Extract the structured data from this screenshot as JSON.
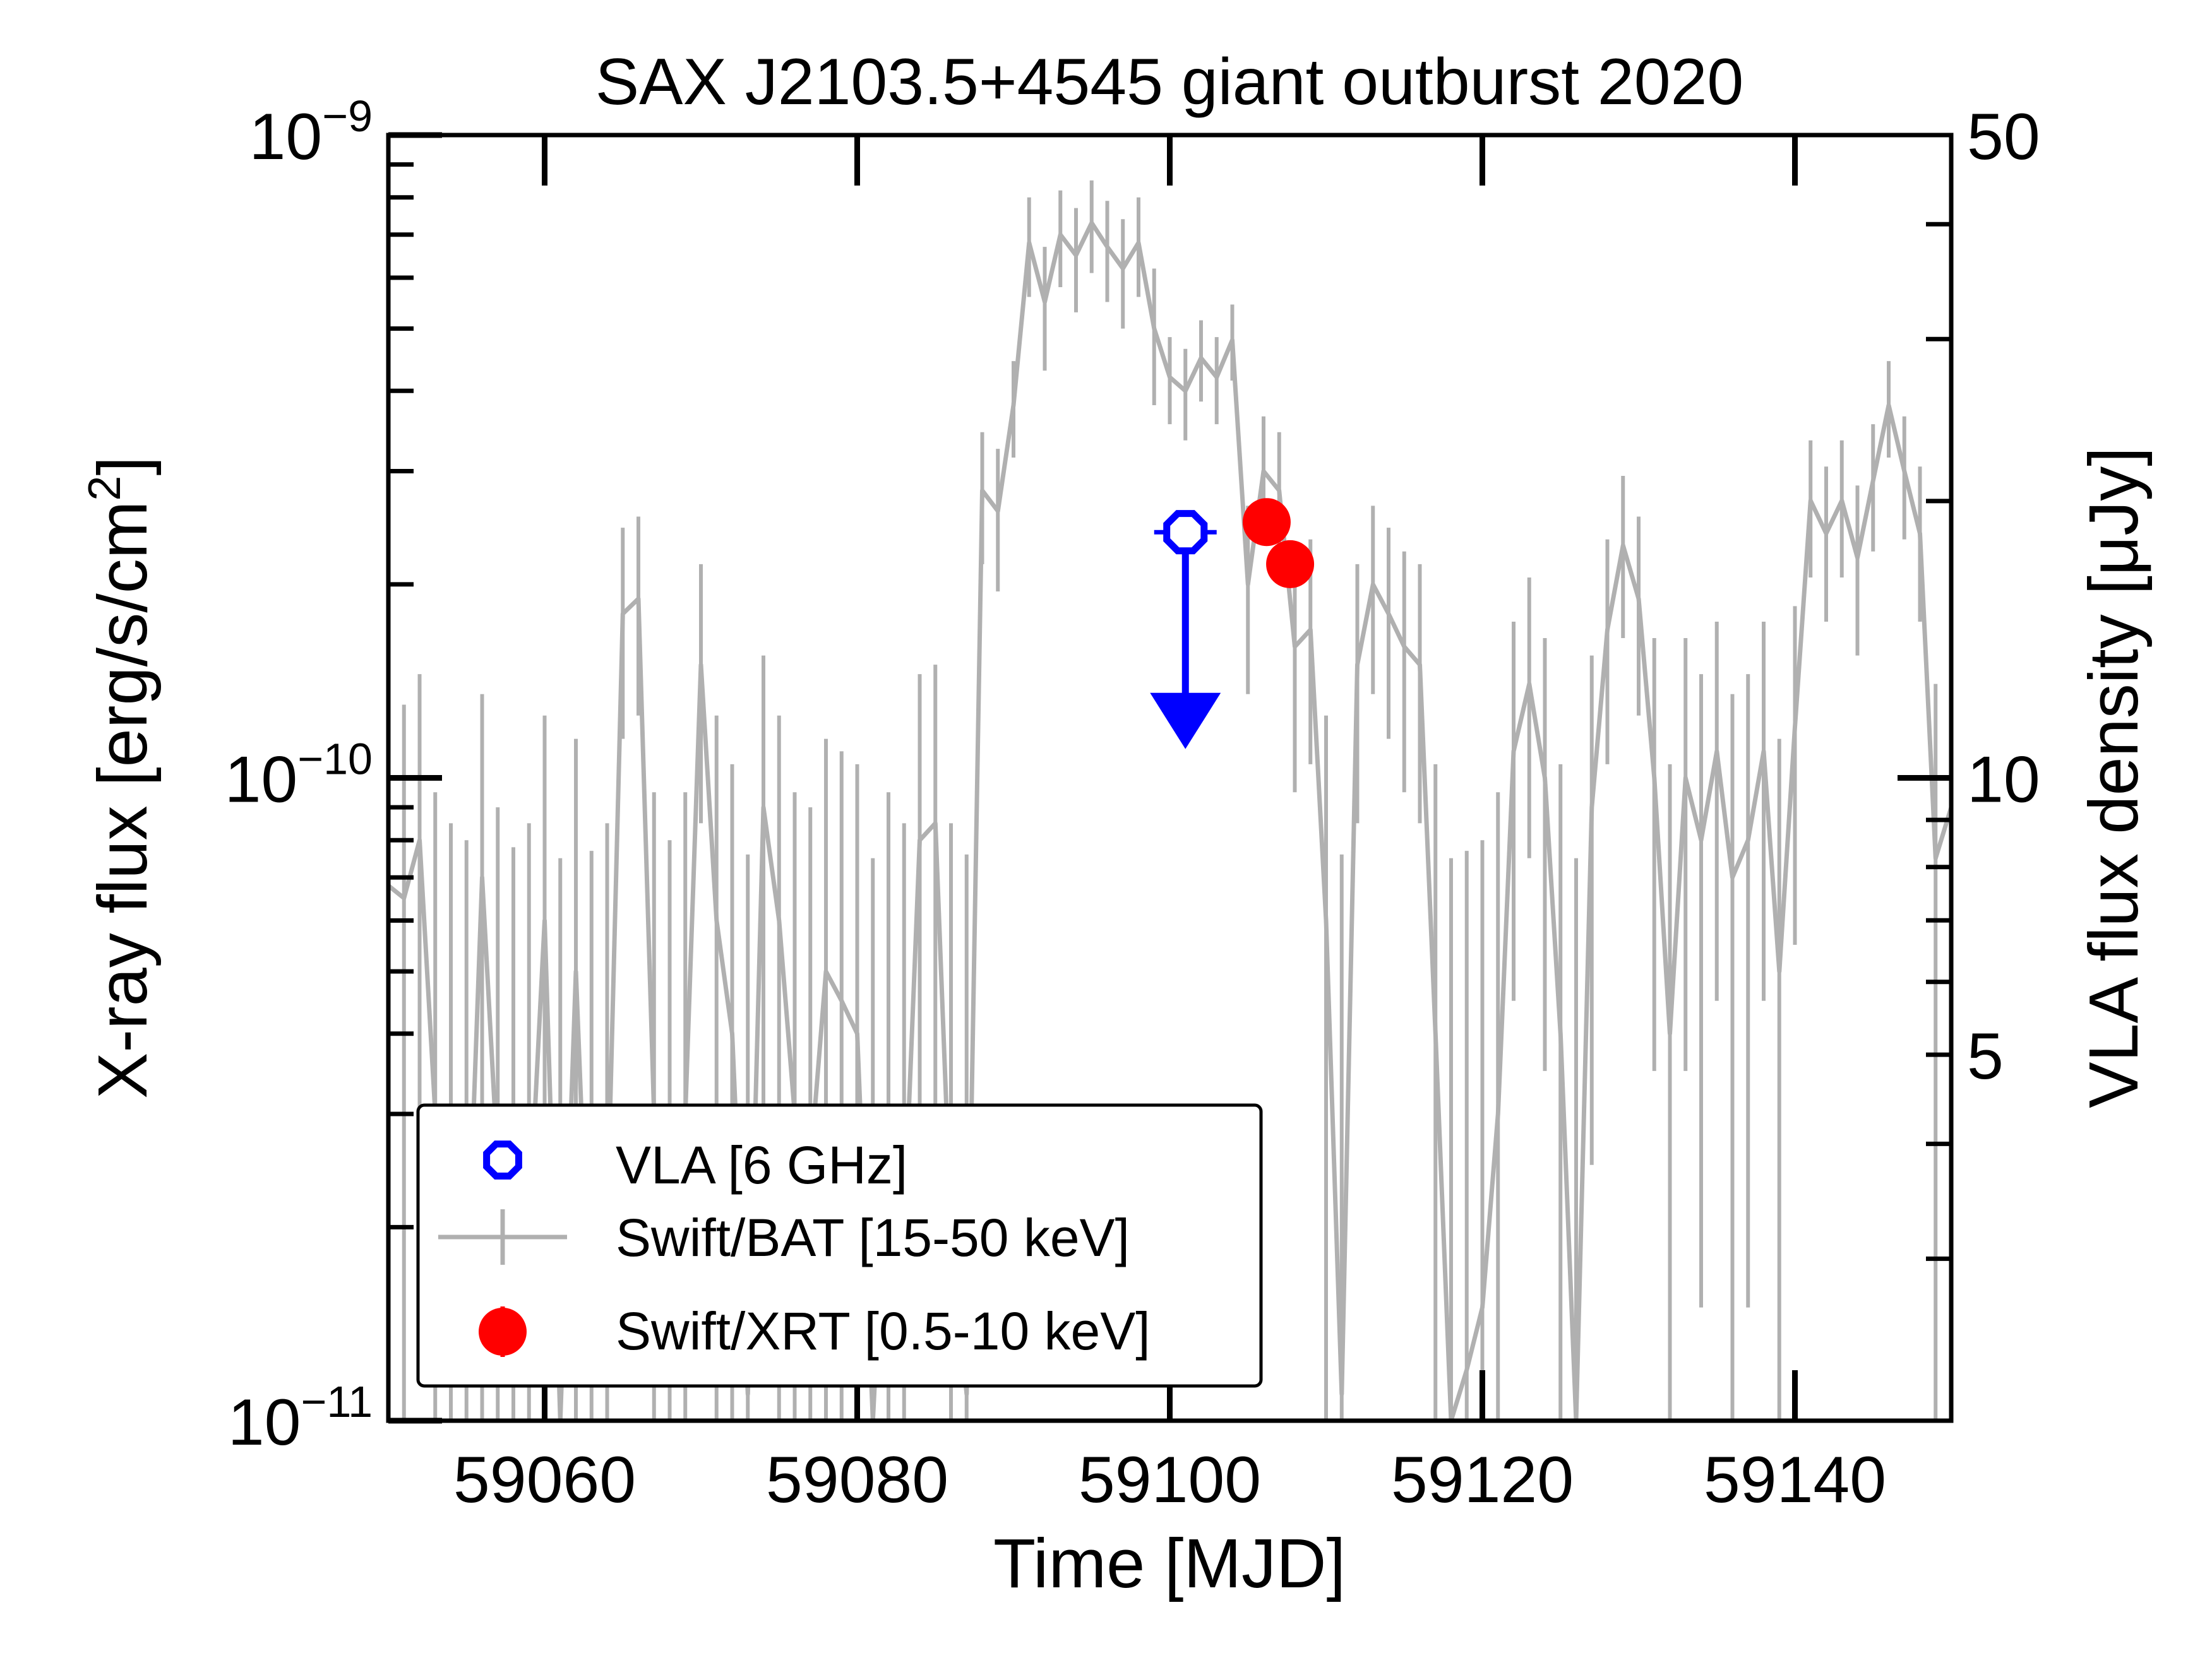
{
  "chart_data": {
    "type": "line",
    "title": "SAX J2103.5+4545 giant outburst 2020",
    "xlabel": "Time [MJD]",
    "ylabel": "X-ray flux [erg/s/cm²]",
    "ylabel_parts": {
      "main": "X-ray flux [erg/s/cm",
      "sup": "2",
      "close": "]"
    },
    "ylabel_right": "VLA flux density [μJy]",
    "xlim": [
      59050,
      59150
    ],
    "ylim": [
      1e-11,
      1e-09
    ],
    "yscale": "log",
    "ylim_right": [
      2,
      50
    ],
    "yscale_right": "log",
    "x_ticks": [
      {
        "value": 59060,
        "label": "59060"
      },
      {
        "value": 59080,
        "label": "59080"
      },
      {
        "value": 59100,
        "label": "59100"
      },
      {
        "value": 59120,
        "label": "59120"
      },
      {
        "value": 59140,
        "label": "59140"
      }
    ],
    "y_ticks_left": [
      {
        "value": 1e-09,
        "base": "10",
        "exp": "−9"
      },
      {
        "value": 1e-10,
        "base": "10",
        "exp": "−10"
      },
      {
        "value": 1e-11,
        "base": "10",
        "exp": "−11"
      }
    ],
    "y_ticks_right": [
      {
        "value": 50,
        "label": "50"
      },
      {
        "value": 10,
        "label": "10"
      },
      {
        "value": 5,
        "label": "5"
      }
    ],
    "legend_position": "lower-left",
    "series": [
      {
        "name": "VLA [6 GHz]",
        "axis": "right",
        "color": "#0000ff",
        "marker": "open-octagon",
        "upper_limit": true,
        "points": [
          {
            "x": 59101,
            "y": 18.5,
            "xerr": 2,
            "arrow_to": 10.8
          }
        ]
      },
      {
        "name": "Swift/BAT [15-50 keV]",
        "axis": "left",
        "color": "#b0b0b0",
        "marker": "errorbar-line",
        "x": [
          59050,
          59051,
          59052,
          59053,
          59054,
          59055,
          59056,
          59057,
          59058,
          59059,
          59060,
          59061,
          59062,
          59063,
          59064,
          59065,
          59066,
          59067,
          59068,
          59069,
          59070,
          59071,
          59072,
          59073,
          59074,
          59075,
          59076,
          59077,
          59078,
          59079,
          59080,
          59081,
          59082,
          59083,
          59084,
          59085,
          59086,
          59087,
          59088,
          59089,
          59090,
          59091,
          59092,
          59093,
          59094,
          59095,
          59096,
          59097,
          59098,
          59099,
          59100,
          59101,
          59102,
          59103,
          59104,
          59105,
          59106,
          59107,
          59108,
          59109,
          59110,
          59111,
          59112,
          59113,
          59114,
          59115,
          59116,
          59117,
          59118,
          59119,
          59120,
          59121,
          59122,
          59123,
          59124,
          59125,
          59126,
          59127,
          59128,
          59129,
          59130,
          59131,
          59132,
          59133,
          59134,
          59135,
          59136,
          59137,
          59138,
          59139,
          59140,
          59141,
          59142,
          59143,
          59144,
          59145,
          59146,
          59147,
          59148,
          59149,
          59150
        ],
        "y": [
          6.8e-11,
          6.5e-11,
          8e-11,
          3e-11,
          2e-11,
          1.5e-11,
          7e-11,
          2.5e-11,
          1.3e-11,
          2e-11,
          6e-11,
          1e-11,
          5e-11,
          1.2e-11,
          2e-11,
          1.8e-10,
          1.9e-10,
          3e-11,
          1.5e-11,
          3e-11,
          1.5e-10,
          6e-11,
          4e-11,
          1.1e-11,
          9e-11,
          6e-11,
          3e-11,
          2.5e-11,
          5e-11,
          4.5e-11,
          4e-11,
          1e-11,
          3e-11,
          2e-11,
          8e-11,
          8.5e-11,
          2e-11,
          1.1e-11,
          2.8e-10,
          2.6e-10,
          3.8e-10,
          6.8e-10,
          5.5e-10,
          7e-10,
          6.5e-10,
          7.3e-10,
          6.7e-10,
          6.2e-10,
          6.8e-10,
          5e-10,
          4.2e-10,
          4e-10,
          4.5e-10,
          4.2e-10,
          4.8e-10,
          2e-10,
          3e-10,
          2.8e-10,
          1.6e-10,
          1.7e-10,
          6e-11,
          1.1e-11,
          1.5e-10,
          2e-10,
          1.8e-10,
          1.6e-10,
          1.5e-10,
          4e-11,
          1e-11,
          1.2e-11,
          1.5e-11,
          3e-11,
          1.1e-10,
          1.4e-10,
          1e-10,
          4e-11,
          1e-11,
          9e-11,
          1.7e-10,
          2.3e-10,
          1.9e-10,
          1e-10,
          4e-11,
          1e-10,
          8e-11,
          1.1e-10,
          7e-11,
          8e-11,
          1.1e-10,
          5e-11,
          1.2e-10,
          2.7e-10,
          2.4e-10,
          2.7e-10,
          2.2e-10,
          2.9e-10,
          3.8e-10,
          3e-10,
          2.4e-10,
          7.5e-11,
          9e-11
        ]
      },
      {
        "name": "Swift/XRT [0.5-10 keV]",
        "axis": "left",
        "color": "#ff0000",
        "marker": "filled-circle",
        "points": [
          {
            "x": 59106.2,
            "y": 2.5e-10
          },
          {
            "x": 59107.7,
            "y": 2.15e-10
          }
        ]
      }
    ]
  }
}
